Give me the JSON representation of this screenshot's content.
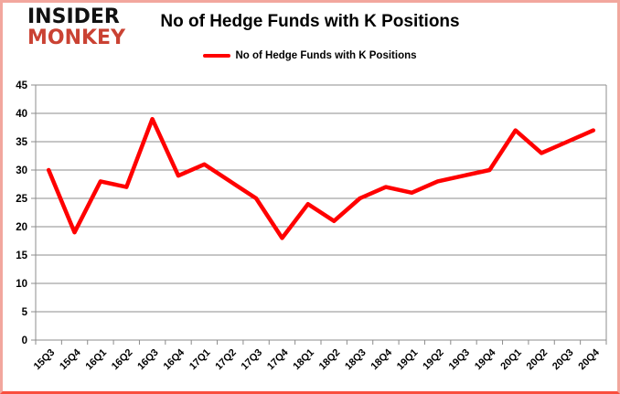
{
  "header": {
    "logo_line1": "INSIDER",
    "logo_line2": "MONKEY",
    "title": "No of Hedge Funds with K Positions"
  },
  "legend": {
    "label": "No of Hedge Funds with K Positions"
  },
  "chart_data": {
    "type": "line",
    "title": "No of Hedge Funds with K Positions",
    "categories": [
      "15Q3",
      "15Q4",
      "16Q1",
      "16Q2",
      "16Q3",
      "16Q4",
      "17Q1",
      "17Q2",
      "17Q3",
      "17Q4",
      "18Q1",
      "18Q2",
      "18Q3",
      "18Q4",
      "19Q1",
      "19Q2",
      "19Q3",
      "19Q4",
      "20Q1",
      "20Q2",
      "20Q3",
      "20Q4"
    ],
    "series": [
      {
        "name": "No of Hedge Funds with K Positions",
        "color": "#ff0000",
        "values": [
          30,
          19,
          28,
          27,
          39,
          29,
          31,
          28,
          25,
          18,
          24,
          21,
          25,
          27,
          26,
          28,
          29,
          30,
          37,
          33,
          35,
          37
        ]
      }
    ],
    "xlabel": "",
    "ylabel": "",
    "ylim": [
      0,
      45
    ],
    "ytick_step": 5,
    "grid": true,
    "legend_position": "top"
  },
  "colors": {
    "line": "#ff0000",
    "gridline": "#8c8c8c",
    "axis": "#8c8c8c",
    "label": "#000000",
    "frame_side": "#f2a79e",
    "frame_bottom": "#f94f3f",
    "logo_black": "#111111",
    "logo_red": "#ca4233"
  }
}
